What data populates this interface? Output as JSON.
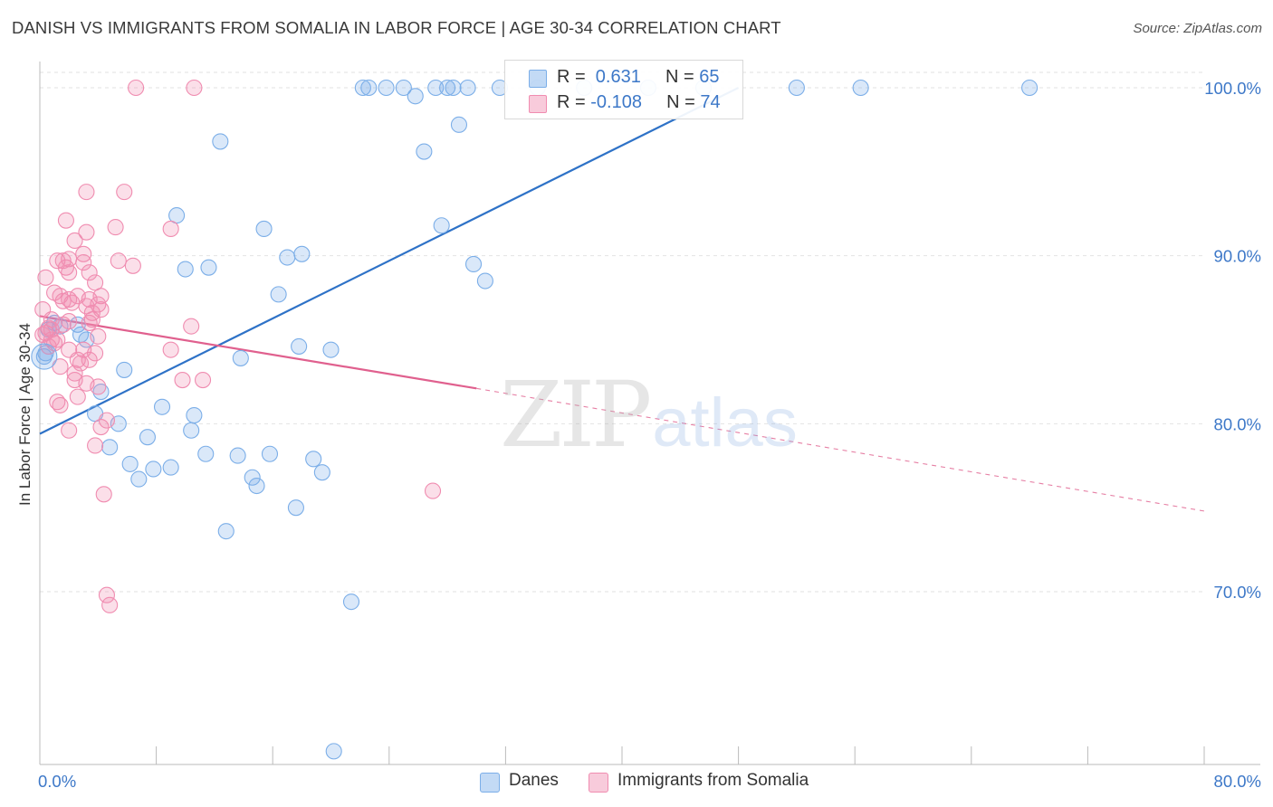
{
  "title": "DANISH VS IMMIGRANTS FROM SOMALIA IN LABOR FORCE | AGE 30-34 CORRELATION CHART",
  "source": "Source: ZipAtlas.com",
  "colors": {
    "blue": "#7baee8",
    "blue_fill": "rgba(123,174,232,0.28)",
    "blue_line": "#2e72c7",
    "pink": "#f08cb0",
    "pink_fill": "rgba(240,140,176,0.28)",
    "pink_line": "#e0608e",
    "axis_text": "#3d78c8",
    "grid": "#e2e2e2"
  },
  "legend": {
    "rows": [
      {
        "r_label": "R = ",
        "r_value": " 0.631",
        "n_label": "N = ",
        "n_value": "65"
      },
      {
        "r_label": "R = ",
        "r_value": "-0.108",
        "n_label": "N = ",
        "n_value": "74"
      }
    ]
  },
  "watermark": {
    "zip": "ZIP",
    "atlas": "atlas"
  },
  "chart_data": {
    "type": "scatter",
    "title": "DANISH VS IMMIGRANTS FROM SOMALIA IN LABOR FORCE | AGE 30-34 CORRELATION CHART",
    "xlabel": "",
    "ylabel": "In Labor Force | Age 30-34",
    "xlim": [
      0,
      80
    ],
    "ylim": [
      60.5,
      101.5
    ],
    "x_tick_labels": [
      {
        "value": 0,
        "label": "0.0%"
      },
      {
        "value": 80,
        "label": "80.0%"
      }
    ],
    "x_minor_ticks": [
      0,
      8,
      16,
      24,
      32,
      40,
      48,
      56,
      64,
      72,
      80
    ],
    "y_ticks": [
      {
        "value": 100,
        "label": "100.0%"
      },
      {
        "value": 90,
        "label": "90.0%"
      },
      {
        "value": 80,
        "label": "80.0%"
      },
      {
        "value": 70,
        "label": "70.0%"
      }
    ],
    "grid": true,
    "legend_position": "bottom",
    "series": [
      {
        "name": "Danes",
        "color": "blue",
        "R": 0.631,
        "N": 65,
        "trend": {
          "x0": 0,
          "y0": 79.4,
          "x1": 48,
          "y1": 100.0,
          "dash_to": null
        },
        "points": [
          [
            22.2,
            100
          ],
          [
            22.6,
            100
          ],
          [
            23.8,
            100
          ],
          [
            25.0,
            100
          ],
          [
            25.8,
            99.5
          ],
          [
            27.2,
            100
          ],
          [
            28.0,
            100
          ],
          [
            28.4,
            100
          ],
          [
            29.4,
            100
          ],
          [
            31.6,
            100
          ],
          [
            34.2,
            100
          ],
          [
            37.4,
            100
          ],
          [
            41.8,
            100
          ],
          [
            45.6,
            100
          ],
          [
            52.0,
            100
          ],
          [
            56.4,
            100
          ],
          [
            68.0,
            100
          ],
          [
            28.8,
            97.8
          ],
          [
            12.4,
            96.8
          ],
          [
            26.4,
            96.2
          ],
          [
            9.4,
            92.4
          ],
          [
            15.4,
            91.6
          ],
          [
            27.6,
            91.8
          ],
          [
            17.0,
            89.9
          ],
          [
            18.0,
            90.1
          ],
          [
            10.0,
            89.2
          ],
          [
            11.6,
            89.3
          ],
          [
            29.8,
            89.5
          ],
          [
            30.6,
            88.5
          ],
          [
            16.4,
            87.7
          ],
          [
            0.6,
            85.6
          ],
          [
            1.4,
            85.8
          ],
          [
            2.6,
            85.9
          ],
          [
            2.8,
            85.3
          ],
          [
            3.2,
            85.0
          ],
          [
            0.4,
            84.2
          ],
          [
            17.8,
            84.6
          ],
          [
            20.0,
            84.4
          ],
          [
            13.8,
            83.9
          ],
          [
            5.8,
            83.2
          ],
          [
            4.2,
            81.9
          ],
          [
            8.4,
            81.0
          ],
          [
            3.8,
            80.6
          ],
          [
            10.6,
            80.5
          ],
          [
            5.4,
            80.0
          ],
          [
            7.4,
            79.2
          ],
          [
            10.4,
            79.6
          ],
          [
            4.8,
            78.6
          ],
          [
            11.4,
            78.2
          ],
          [
            13.6,
            78.1
          ],
          [
            15.8,
            78.2
          ],
          [
            18.8,
            77.9
          ],
          [
            6.2,
            77.6
          ],
          [
            7.8,
            77.3
          ],
          [
            9.0,
            77.4
          ],
          [
            6.8,
            76.7
          ],
          [
            19.4,
            77.1
          ],
          [
            14.6,
            76.8
          ],
          [
            14.9,
            76.3
          ],
          [
            17.6,
            75.0
          ],
          [
            12.8,
            73.6
          ],
          [
            21.4,
            69.4
          ],
          [
            20.2,
            60.5
          ],
          [
            0.3,
            84.0
          ],
          [
            1.0,
            86.0
          ]
        ]
      },
      {
        "name": "Immigrants from Somalia",
        "color": "pink",
        "R": -0.108,
        "N": 74,
        "trend": {
          "x0": 0,
          "y0": 86.4,
          "x1": 30,
          "y1": 82.1,
          "dash_to": {
            "x": 80,
            "y": 74.8
          }
        },
        "points": [
          [
            6.6,
            100
          ],
          [
            10.6,
            100
          ],
          [
            3.2,
            93.8
          ],
          [
            5.8,
            93.8
          ],
          [
            1.8,
            92.1
          ],
          [
            5.2,
            91.7
          ],
          [
            9.0,
            91.6
          ],
          [
            3.2,
            91.4
          ],
          [
            2.4,
            90.9
          ],
          [
            3.0,
            90.1
          ],
          [
            1.2,
            89.7
          ],
          [
            1.6,
            89.7
          ],
          [
            2.0,
            89.8
          ],
          [
            3.0,
            89.6
          ],
          [
            5.4,
            89.7
          ],
          [
            6.4,
            89.4
          ],
          [
            1.8,
            89.3
          ],
          [
            2.0,
            89.0
          ],
          [
            3.4,
            89.0
          ],
          [
            0.4,
            88.7
          ],
          [
            3.8,
            88.4
          ],
          [
            1.0,
            87.8
          ],
          [
            1.4,
            87.6
          ],
          [
            2.6,
            87.6
          ],
          [
            3.4,
            87.4
          ],
          [
            4.2,
            87.6
          ],
          [
            1.6,
            87.3
          ],
          [
            3.2,
            87.0
          ],
          [
            2.0,
            87.4
          ],
          [
            4.0,
            87.1
          ],
          [
            4.2,
            86.8
          ],
          [
            0.2,
            86.8
          ],
          [
            3.6,
            86.2
          ],
          [
            3.4,
            86.0
          ],
          [
            0.8,
            86.2
          ],
          [
            2.0,
            86.1
          ],
          [
            0.6,
            85.7
          ],
          [
            0.4,
            85.4
          ],
          [
            0.8,
            85.0
          ],
          [
            1.2,
            85.0
          ],
          [
            4.0,
            85.2
          ],
          [
            10.4,
            85.8
          ],
          [
            2.0,
            84.4
          ],
          [
            3.8,
            84.2
          ],
          [
            9.0,
            84.4
          ],
          [
            2.6,
            83.8
          ],
          [
            2.8,
            83.6
          ],
          [
            3.4,
            83.8
          ],
          [
            0.6,
            84.6
          ],
          [
            1.4,
            83.4
          ],
          [
            2.4,
            83.0
          ],
          [
            3.2,
            82.4
          ],
          [
            2.4,
            82.6
          ],
          [
            4.0,
            82.2
          ],
          [
            9.8,
            82.6
          ],
          [
            11.2,
            82.6
          ],
          [
            2.6,
            81.6
          ],
          [
            1.2,
            81.3
          ],
          [
            1.4,
            81.1
          ],
          [
            4.6,
            80.2
          ],
          [
            4.2,
            79.8
          ],
          [
            2.0,
            79.6
          ],
          [
            3.8,
            78.7
          ],
          [
            27.0,
            76.0
          ],
          [
            4.4,
            75.8
          ],
          [
            4.6,
            69.8
          ],
          [
            4.8,
            69.2
          ],
          [
            0.8,
            85.6
          ],
          [
            1.0,
            84.8
          ],
          [
            0.2,
            85.3
          ],
          [
            3.0,
            84.4
          ],
          [
            2.2,
            87.2
          ],
          [
            1.6,
            85.9
          ],
          [
            3.6,
            86.6
          ]
        ]
      }
    ]
  }
}
